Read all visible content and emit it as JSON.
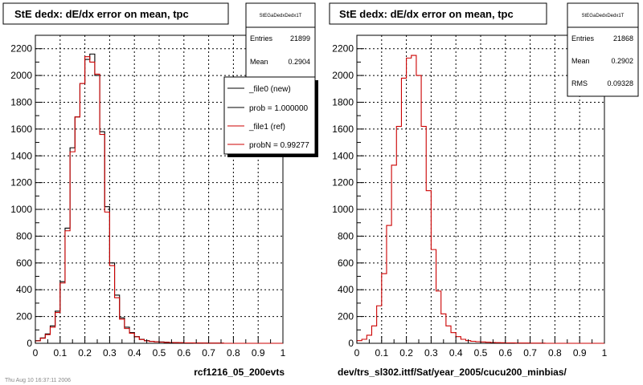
{
  "colors": {
    "new": "#000000",
    "ref": "#cc0000",
    "grid": "#000000"
  },
  "left_panel": {
    "title": "StE dedx: dE/dx error on mean, tpc",
    "xlabel": "rcf1216_05_200evts",
    "stats": {
      "name": "StEGaDedxDedx1T",
      "rows": [
        {
          "label": "Entries",
          "value": "21899"
        },
        {
          "label": "Mean",
          "value": "0.2904"
        }
      ]
    },
    "legend": [
      {
        "label": "_file0 (new)",
        "color": "#000000"
      },
      {
        "label": "prob = 1.000000",
        "color": "#000000"
      },
      {
        "label": "_file1 (ref)",
        "color": "#cc0000"
      },
      {
        "label": "probN = 0.99277",
        "color": "#cc0000"
      }
    ]
  },
  "right_panel": {
    "title": "StE dedx: dE/dx error on mean, tpc",
    "xlabel": "dev/trs_sl302.ittf/Sat/year_2005/cucu200_minbias/",
    "stats": {
      "name": "StEGaDedxDedx1T",
      "rows": [
        {
          "label": "Entries",
          "value": "21868"
        },
        {
          "label": "Mean",
          "value": "0.2902"
        },
        {
          "label": "RMS",
          "value": "0.09328"
        }
      ]
    }
  },
  "footer_text": "Thu Aug 10 16:37:11 2006",
  "chart_data": [
    {
      "type": "histogram",
      "title": "StE dedx: dE/dx error on mean, tpc",
      "xlabel": "rcf1216_05_200evts",
      "xlim": [
        0,
        1
      ],
      "ylim": [
        0,
        2300
      ],
      "xticks": [
        "0",
        "0.1",
        "0.2",
        "0.3",
        "0.4",
        "0.5",
        "0.6",
        "0.7",
        "0.8",
        "0.9",
        "1"
      ],
      "yticks": [
        "0",
        "200",
        "400",
        "600",
        "800",
        "1000",
        "1200",
        "1400",
        "1600",
        "1800",
        "2000",
        "2200"
      ],
      "grid": true,
      "bin_width": 0.02,
      "series": [
        {
          "name": "_file0 (new)",
          "color": "#000000",
          "values": [
            20,
            40,
            70,
            130,
            240,
            460,
            860,
            1460,
            1690,
            1940,
            2120,
            2160,
            2000,
            1580,
            1020,
            600,
            360,
            190,
            120,
            80,
            50,
            30,
            20,
            15,
            12,
            10,
            8,
            6,
            5,
            4,
            3,
            3,
            2,
            2,
            2,
            1,
            1,
            1,
            0,
            0,
            0,
            0,
            0,
            0,
            0,
            0,
            0,
            0,
            0,
            0
          ]
        },
        {
          "name": "_file1 (ref)",
          "color": "#cc0000",
          "values": [
            18,
            38,
            65,
            120,
            230,
            450,
            840,
            1430,
            1690,
            1940,
            2140,
            2100,
            2010,
            1560,
            980,
            580,
            340,
            180,
            110,
            75,
            48,
            28,
            18,
            14,
            11,
            9,
            7,
            6,
            5,
            4,
            3,
            3,
            2,
            2,
            1,
            1,
            1,
            1,
            0,
            0,
            0,
            0,
            0,
            0,
            0,
            0,
            0,
            0,
            0,
            0
          ]
        }
      ]
    },
    {
      "type": "histogram",
      "title": "StE dedx: dE/dx error on mean, tpc",
      "xlabel": "dev/trs_sl302.ittf/Sat/year_2005/cucu200_minbias/",
      "xlim": [
        0,
        1
      ],
      "ylim": [
        0,
        2300
      ],
      "xticks": [
        "0",
        "0.1",
        "0.2",
        "0.3",
        "0.4",
        "0.5",
        "0.6",
        "0.7",
        "0.8",
        "0.9",
        "1"
      ],
      "yticks": [
        "0",
        "200",
        "400",
        "600",
        "800",
        "1000",
        "1200",
        "1400",
        "1600",
        "1800",
        "2000",
        "2200"
      ],
      "grid": true,
      "bin_width": 0.02,
      "series": [
        {
          "color": "#cc0000",
          "values": [
            20,
            30,
            60,
            130,
            280,
            520,
            880,
            1330,
            1620,
            1980,
            2130,
            2150,
            2000,
            1620,
            1140,
            700,
            390,
            220,
            130,
            80,
            50,
            30,
            20,
            15,
            12,
            10,
            8,
            6,
            5,
            4,
            3,
            3,
            2,
            2,
            2,
            1,
            1,
            1,
            0,
            0,
            0,
            0,
            0,
            0,
            0,
            0,
            0,
            0,
            0,
            0
          ]
        }
      ]
    }
  ]
}
